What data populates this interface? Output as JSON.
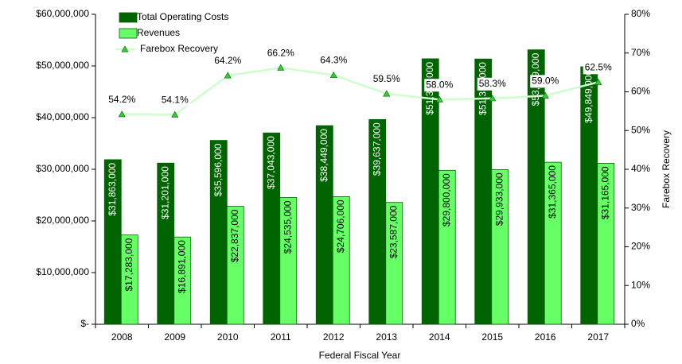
{
  "chart_data": {
    "type": "bar",
    "x_label": "Federal Fiscal Year",
    "y2_label": "Farebox Recovery",
    "categories": [
      "2008",
      "2009",
      "2010",
      "2011",
      "2012",
      "2013",
      "2014",
      "2015",
      "2016",
      "2017"
    ],
    "series": [
      {
        "name": "Total Operating Costs",
        "color": "#006400",
        "values": [
          31863000,
          31201000,
          35596000,
          37043000,
          38449000,
          39637000,
          51395000,
          51353000,
          53129000,
          49849000
        ],
        "value_labels": [
          "$31,863,000",
          "$31,201,000",
          "$35,596,000",
          "$37,043,000",
          "$38,449,000",
          "$39,637,000",
          "$51,395,000",
          "$51,353,000",
          "$53,129,000",
          "$49,849,000"
        ]
      },
      {
        "name": "Revenues",
        "color": "#66ff66",
        "values": [
          17283000,
          16891000,
          22837000,
          24535000,
          24706000,
          23587000,
          29800000,
          29933000,
          31365000,
          31165000
        ],
        "value_labels": [
          "$17,283,000",
          "$16,891,000",
          "$22,837,000",
          "$24,535,000",
          "$24,706,000",
          "$23,587,000",
          "$29,800,000",
          "$29,933,000",
          "$31,365,000",
          "$31,165,000"
        ]
      },
      {
        "name": "Farebox Recovery",
        "type": "line",
        "axis": "y2",
        "color": "#ccffcc",
        "marker_color": "#33cc33",
        "values": [
          54.2,
          54.1,
          64.2,
          66.2,
          64.3,
          59.5,
          58.0,
          58.3,
          59.0,
          62.5
        ],
        "value_labels": [
          "54.2%",
          "54.1%",
          "64.2%",
          "66.2%",
          "64.3%",
          "59.5%",
          "58.0%",
          "58.3%",
          "59.0%",
          "62.5%"
        ]
      }
    ],
    "ylim": [
      0,
      60000000
    ],
    "yticks": [
      {
        "value": 0,
        "label": "$-"
      },
      {
        "value": 10000000,
        "label": "$10,000,000"
      },
      {
        "value": 20000000,
        "label": "$20,000,000"
      },
      {
        "value": 30000000,
        "label": "$30,000,000"
      },
      {
        "value": 40000000,
        "label": "$40,000,000"
      },
      {
        "value": 50000000,
        "label": "$50,000,000"
      },
      {
        "value": 60000000,
        "label": "$60,000,000"
      }
    ],
    "y2lim": [
      0,
      80
    ],
    "y2ticks": [
      {
        "value": 0,
        "label": "0%"
      },
      {
        "value": 10,
        "label": "10%"
      },
      {
        "value": 20,
        "label": "20%"
      },
      {
        "value": 30,
        "label": "30%"
      },
      {
        "value": 40,
        "label": "40%"
      },
      {
        "value": 50,
        "label": "50%"
      },
      {
        "value": 60,
        "label": "60%"
      },
      {
        "value": 70,
        "label": "70%"
      },
      {
        "value": 80,
        "label": "80%"
      }
    ],
    "legend": "top-left"
  }
}
